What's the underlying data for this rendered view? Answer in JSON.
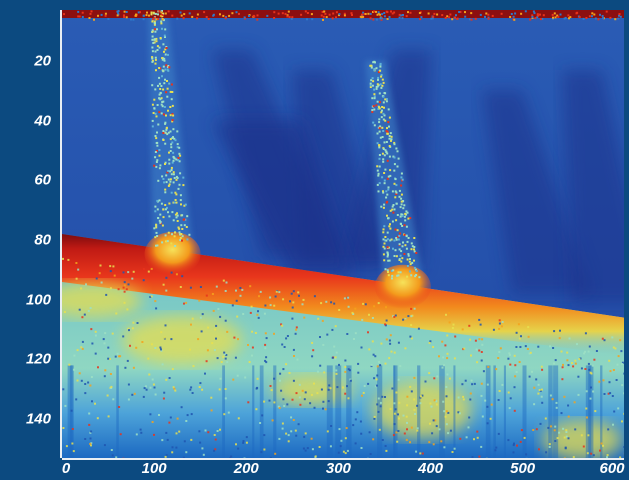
{
  "chart_data": {
    "type": "heatmap",
    "title": "",
    "xlabel": "",
    "ylabel": "",
    "xlim": [
      0,
      610
    ],
    "ylim": [
      153,
      3
    ],
    "x_ticks": [
      "0",
      "100",
      "200",
      "300",
      "400",
      "500",
      "600"
    ],
    "y_ticks": [
      "20",
      "40",
      "60",
      "80",
      "100",
      "120",
      "140"
    ],
    "x_tick_values": [
      0,
      100,
      200,
      300,
      400,
      500,
      600
    ],
    "y_tick_values": [
      20,
      40,
      60,
      80,
      100,
      120,
      140
    ],
    "surface_line": [
      [
        0,
        78
      ],
      [
        610,
        106
      ]
    ],
    "plumes": [
      {
        "x_top": 102,
        "x_bottom": 120,
        "y_top": 3,
        "y_bottom": 82
      },
      {
        "x_top": 338,
        "x_bottom": 370,
        "y_top": 20,
        "y_bottom": 93
      }
    ],
    "colorscale": [
      "#1b2f88",
      "#1f55b0",
      "#2e78c9",
      "#5fb3d8",
      "#9ee0c4",
      "#e8e050",
      "#f5a21c",
      "#e8321c",
      "#8c0f10"
    ],
    "colors": {
      "background": "#0c4a80",
      "water": "#2553ad",
      "deep_water": "#1c318b",
      "surface_red": "#d9261a",
      "surface_dark": "#7c0c0e",
      "sediment_green": "#8fd7c2",
      "sediment_yellow": "#e7de4f",
      "axis": "#e9eef4"
    }
  }
}
